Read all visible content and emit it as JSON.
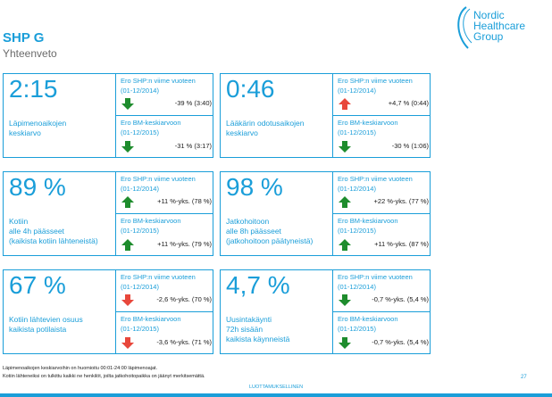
{
  "page": {
    "title": "SHP G",
    "subtitle": "Yhteenveto"
  },
  "logo": {
    "line1": "Nordic",
    "line2": "Healthcare",
    "line3": "Group"
  },
  "cards": [
    {
      "value": "2:15",
      "desc": [
        "Läpimenoaikojen",
        "keskiarvo"
      ],
      "cmp1": {
        "label1": "Ero SHP:n viime vuoteen",
        "label2": "(01-12/2014)",
        "value": "-39 % (3:40)",
        "direction": "down",
        "color": "#1e8c2d"
      },
      "cmp2": {
        "label1": "Ero BM-keskiarvoon",
        "label2": "(01-12/2015)",
        "value": "-31 % (3:17)",
        "direction": "down",
        "color": "#1e8c2d"
      }
    },
    {
      "value": "0:46",
      "desc": [
        "Lääkärin odotusaikojen",
        "keskiarvo"
      ],
      "cmp1": {
        "label1": "Ero SHP:n viime vuoteen",
        "label2": "(01-12/2014)",
        "value": "+4,7 % (0:44)",
        "direction": "up",
        "color": "#e8473b"
      },
      "cmp2": {
        "label1": "Ero BM-keskiarvoon",
        "label2": "(01-12/2015)",
        "value": "-30 % (1:06)",
        "direction": "down",
        "color": "#1e8c2d"
      }
    },
    {
      "value": "89 %",
      "desc": [
        "Kotiin",
        "alle 4h päässeet",
        "(kaikista kotiin lähteneistä)"
      ],
      "cmp1": {
        "label1": "Ero SHP:n viime vuoteen",
        "label2": "(01-12/2014)",
        "value": "+11 %-yks. (78 %)",
        "direction": "up",
        "color": "#1e8c2d"
      },
      "cmp2": {
        "label1": "Ero BM-keskiarvoon",
        "label2": "(01-12/2015)",
        "value": "+11 %-yks. (79 %)",
        "direction": "up",
        "color": "#1e8c2d"
      }
    },
    {
      "value": "98 %",
      "desc": [
        "Jatkohoitoon",
        "alle 8h päässeet",
        "(jatkohoitoon päätyneistä)"
      ],
      "cmp1": {
        "label1": "Ero SHP:n viime vuoteen",
        "label2": "(01-12/2014)",
        "value": "+22 %-yks. (77 %)",
        "direction": "up",
        "color": "#1e8c2d"
      },
      "cmp2": {
        "label1": "Ero BM-keskiarvoon",
        "label2": "(01-12/2015)",
        "value": "+11 %-yks. (87 %)",
        "direction": "up",
        "color": "#1e8c2d"
      }
    },
    {
      "value": "67 %",
      "desc": [
        "Kotiin lähtevien osuus",
        "kaikista potilaista"
      ],
      "cmp1": {
        "label1": "Ero SHP:n viime vuoteen",
        "label2": "(01-12/2014)",
        "value": "-2,6 %-yks. (70 %)",
        "direction": "down",
        "color": "#e8473b"
      },
      "cmp2": {
        "label1": "Ero BM-keskiarvoon",
        "label2": "(01-12/2015)",
        "value": "-3,6 %-yks. (71 %)",
        "direction": "down",
        "color": "#e8473b"
      }
    },
    {
      "value": "4,7 %",
      "desc": [
        "Uusintakäynti",
        "72h sisään",
        "kaikista käynneistä"
      ],
      "cmp1": {
        "label1": "Ero SHP:n viime vuoteen",
        "label2": "(01-12/2014)",
        "value": "-0,7 %-yks. (5,4 %)",
        "direction": "down",
        "color": "#1e8c2d"
      },
      "cmp2": {
        "label1": "Ero BM-keskiarvoon",
        "label2": "(01-12/2015)",
        "value": "-0,7 %-yks. (5,4 %)",
        "direction": "down",
        "color": "#1e8c2d"
      }
    }
  ],
  "footer": {
    "note1": "Läpimenoaikojen keskiarvoihin on huomioitu 00:01-24:00 läpimenoajat.",
    "note2": "Kotiin lähteneiksi on tulkittu kaikki ne henkilöt, joilta jatkohoitopaikka on jäänyt merkitsemättä.",
    "confidential": "LUOTTAMUKSELLINEN",
    "page_number": "27"
  },
  "colors": {
    "accent": "#1a9ed9",
    "good": "#1e8c2d",
    "bad": "#e8473b"
  }
}
